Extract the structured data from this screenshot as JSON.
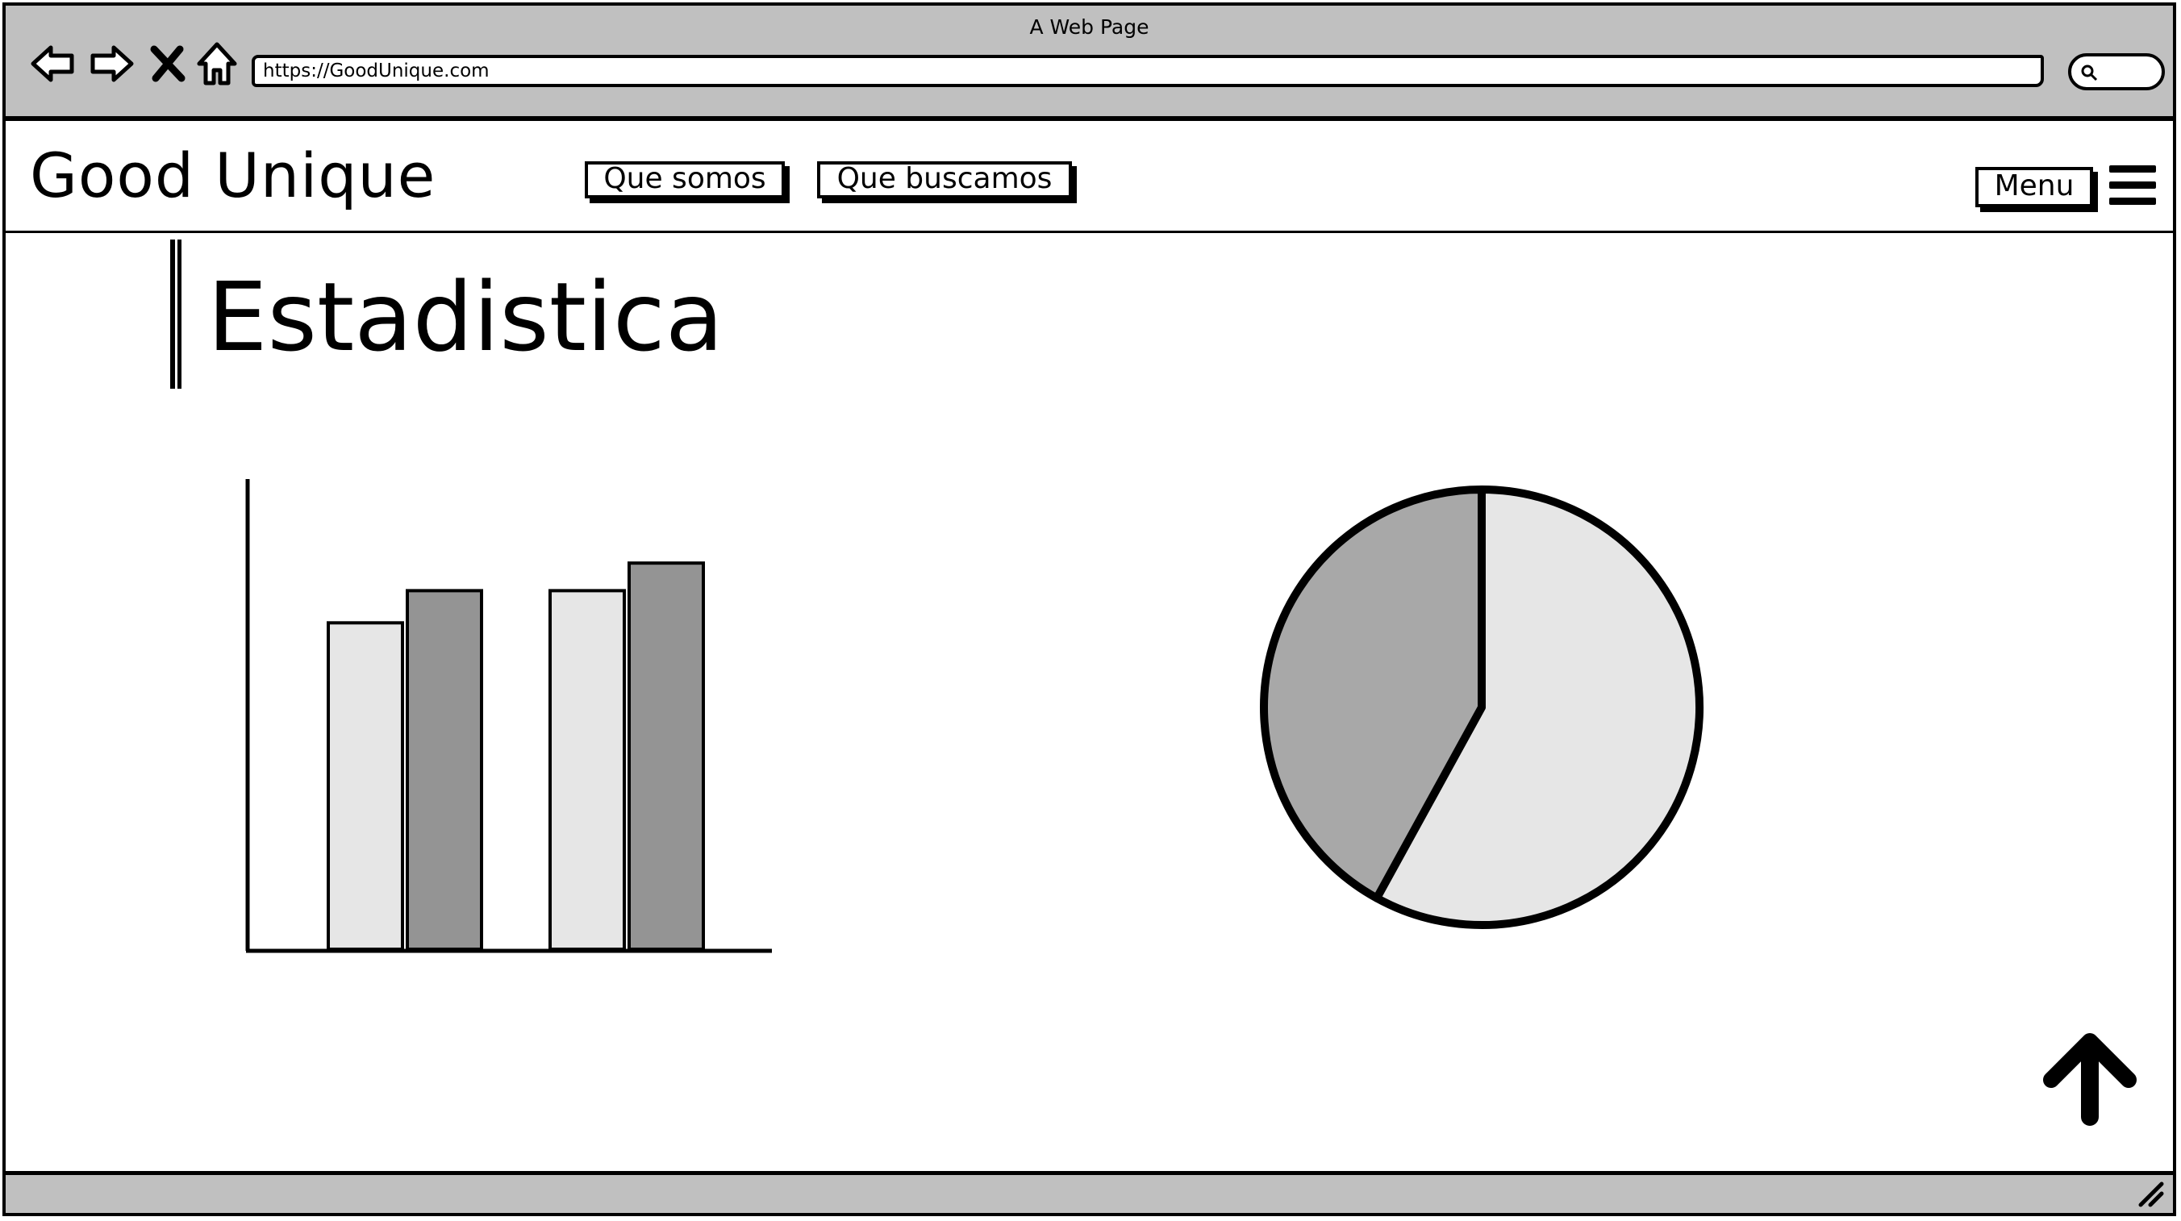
{
  "browser": {
    "window_title": "A Web Page",
    "url": "https://GoodUnique.com",
    "buttons": [
      "back-icon",
      "forward-icon",
      "close-icon",
      "home-icon",
      "search-icon"
    ]
  },
  "header": {
    "logo": "Good Unique",
    "nav": [
      {
        "label": "Que somos"
      },
      {
        "label": "Que buscamos"
      }
    ],
    "menu_label": "Menu",
    "menu_icon": "hamburger-icon"
  },
  "main": {
    "title": "Estadistica",
    "scroll_top_icon": "arrow-up-icon"
  },
  "colors": {
    "chrome": "#c0c0c0",
    "light_fill": "#e6e6e6",
    "dark_fill": "#949494",
    "pie_dark": "#a8a8a8"
  },
  "chart_data": [
    {
      "type": "bar",
      "title": "",
      "xlabel": "",
      "ylabel": "",
      "categories": [
        "",
        ""
      ],
      "series": [
        {
          "values": [
            71,
            78
          ]
        },
        {
          "values": [
            78,
            84
          ]
        }
      ],
      "ylim": [
        0,
        100
      ]
    },
    {
      "type": "pie",
      "title": "",
      "values": [
        58,
        42
      ]
    }
  ]
}
